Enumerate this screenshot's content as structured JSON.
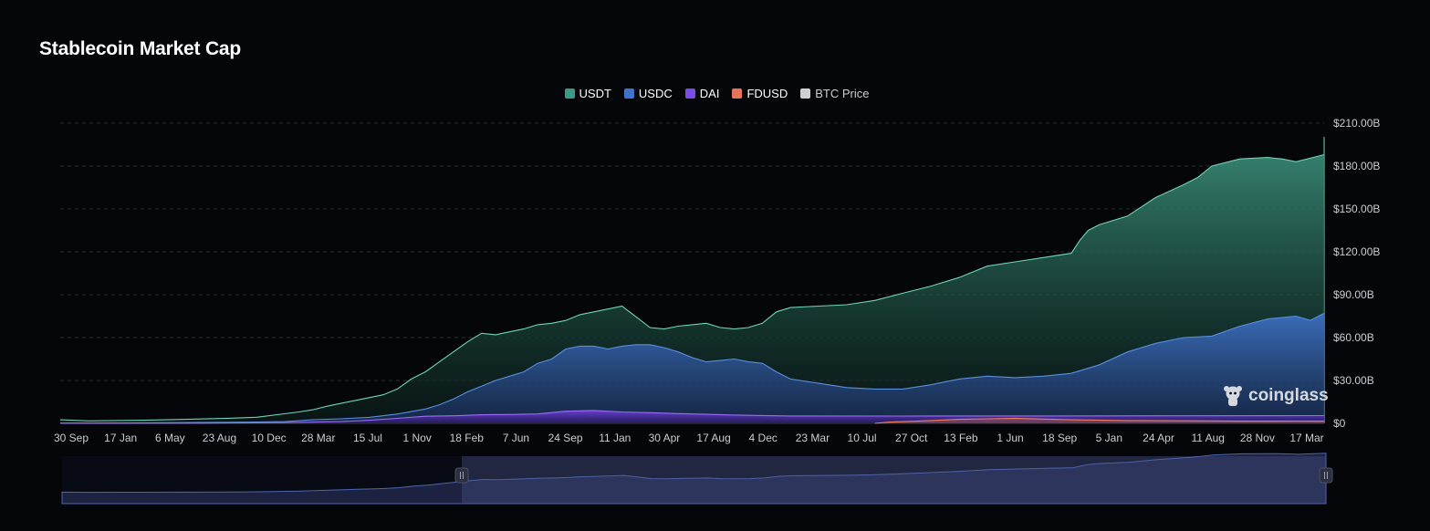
{
  "title": "Stablecoin Market Cap",
  "watermark": "coinglass",
  "legend": [
    {
      "label": "USDT",
      "color": "#3a9a86",
      "active": true
    },
    {
      "label": "USDC",
      "color": "#3f74c9",
      "active": true
    },
    {
      "label": "DAI",
      "color": "#7b4be8",
      "active": true
    },
    {
      "label": "FDUSD",
      "color": "#e8735a",
      "active": true
    },
    {
      "label": "BTC Price",
      "color": "#cfcfd4",
      "active": false
    }
  ],
  "colors": {
    "background": "#05060a",
    "grid": "#2a2d33",
    "axis_text": "#c9ccd3",
    "usdt_line": "#6fd3b6",
    "usdc_line": "#5a8ee0",
    "dai_line": "#9a6cf5",
    "fdusd_line": "#f08060"
  },
  "chart_data": {
    "type": "area",
    "title": "Stablecoin Market Cap",
    "x_tick_labels": [
      "30 Sep",
      "17 Jan",
      "6 May",
      "23 Aug",
      "10 Dec",
      "28 Mar",
      "15 Jul",
      "1 Nov",
      "18 Feb",
      "7 Jun",
      "24 Sep",
      "11 Jan",
      "30 Apr",
      "17 Aug",
      "4 Dec",
      "23 Mar",
      "10 Jul",
      "27 Oct",
      "13 Feb",
      "1 Jun",
      "18 Sep",
      "5 Jan",
      "24 Apr",
      "11 Aug",
      "28 Nov",
      "17 Mar"
    ],
    "y_tick_labels": [
      "$0",
      "$30.00B",
      "$60.00B",
      "$90.00B",
      "$120.00B",
      "$150.00B",
      "$180.00B",
      "$210.00B"
    ],
    "ylim": [
      0,
      210
    ],
    "y_unit": "B USD",
    "grid": true,
    "legend_position": "top-center",
    "series": [
      {
        "name": "USDT",
        "points": [
          [
            0,
            2.5
          ],
          [
            1,
            1.7
          ],
          [
            3,
            2.2
          ],
          [
            4.5,
            2.8
          ],
          [
            6,
            3.6
          ],
          [
            7,
            4.3
          ],
          [
            8.5,
            8
          ],
          [
            9,
            9.5
          ],
          [
            9.5,
            12
          ],
          [
            10,
            14
          ],
          [
            10.5,
            16
          ],
          [
            11,
            18
          ],
          [
            11.5,
            20
          ],
          [
            12,
            24
          ],
          [
            12.5,
            31
          ],
          [
            13,
            36
          ],
          [
            13.5,
            43
          ],
          [
            14,
            50
          ],
          [
            14.5,
            57
          ],
          [
            15,
            63
          ],
          [
            15.5,
            62
          ],
          [
            16,
            64
          ],
          [
            16.5,
            66
          ],
          [
            17,
            69
          ],
          [
            17.5,
            70
          ],
          [
            18,
            72
          ],
          [
            18.5,
            76
          ],
          [
            19,
            78
          ],
          [
            19.5,
            80
          ],
          [
            20,
            82
          ],
          [
            20.2,
            79
          ],
          [
            20.6,
            73
          ],
          [
            21,
            67
          ],
          [
            21.5,
            66
          ],
          [
            22,
            68
          ],
          [
            22.5,
            69
          ],
          [
            23,
            70
          ],
          [
            23.5,
            67
          ],
          [
            24,
            66
          ],
          [
            24.5,
            67
          ],
          [
            25,
            70
          ],
          [
            25.5,
            78
          ],
          [
            26,
            81
          ],
          [
            27,
            82
          ],
          [
            28,
            83
          ],
          [
            29,
            86
          ],
          [
            30,
            91
          ],
          [
            31,
            96
          ],
          [
            32,
            102
          ],
          [
            33,
            110
          ],
          [
            34,
            113
          ],
          [
            35,
            116
          ],
          [
            36,
            119
          ],
          [
            36.3,
            128
          ],
          [
            36.6,
            135
          ],
          [
            37,
            139
          ],
          [
            38,
            145
          ],
          [
            39,
            158
          ],
          [
            40,
            167
          ],
          [
            40.5,
            172
          ],
          [
            41,
            180
          ],
          [
            42,
            185
          ],
          [
            43,
            186
          ],
          [
            43.5,
            185
          ],
          [
            44,
            183
          ],
          [
            45,
            188
          ]
        ]
      },
      {
        "name": "USDC",
        "points": [
          [
            0,
            0.2
          ],
          [
            3,
            0.4
          ],
          [
            5,
            0.6
          ],
          [
            7,
            0.9
          ],
          [
            8,
            1.2
          ],
          [
            9,
            2.5
          ],
          [
            10,
            3.2
          ],
          [
            11,
            4.2
          ],
          [
            12,
            6.5
          ],
          [
            13,
            10
          ],
          [
            13.5,
            13
          ],
          [
            14,
            17
          ],
          [
            14.5,
            22
          ],
          [
            15,
            26
          ],
          [
            15.5,
            30
          ],
          [
            16,
            33
          ],
          [
            16.5,
            36
          ],
          [
            17,
            42
          ],
          [
            17.5,
            45
          ],
          [
            18,
            52
          ],
          [
            18.5,
            54
          ],
          [
            19,
            54
          ],
          [
            19.5,
            52
          ],
          [
            20,
            54
          ],
          [
            20.5,
            55
          ],
          [
            21,
            55
          ],
          [
            21.5,
            53
          ],
          [
            22,
            50
          ],
          [
            22.5,
            46
          ],
          [
            23,
            43
          ],
          [
            23.5,
            44
          ],
          [
            24,
            45
          ],
          [
            24.5,
            43
          ],
          [
            25,
            42
          ],
          [
            25.5,
            36
          ],
          [
            26,
            31
          ],
          [
            27,
            28
          ],
          [
            28,
            25
          ],
          [
            29,
            24
          ],
          [
            30,
            24
          ],
          [
            31,
            27
          ],
          [
            32,
            31
          ],
          [
            33,
            33
          ],
          [
            34,
            32
          ],
          [
            35,
            33
          ],
          [
            36,
            35
          ],
          [
            37,
            41
          ],
          [
            38,
            50
          ],
          [
            39,
            56
          ],
          [
            40,
            60
          ],
          [
            41,
            61
          ],
          [
            42,
            68
          ],
          [
            43,
            73
          ],
          [
            44,
            75
          ],
          [
            44.5,
            72
          ],
          [
            45,
            77
          ]
        ]
      },
      {
        "name": "DAI",
        "points": [
          [
            0,
            0
          ],
          [
            5,
            0.1
          ],
          [
            8,
            0.5
          ],
          [
            10,
            1.2
          ],
          [
            11,
            2.2
          ],
          [
            12,
            3.5
          ],
          [
            13,
            5
          ],
          [
            14,
            5.3
          ],
          [
            15,
            6
          ],
          [
            16,
            6.2
          ],
          [
            17,
            6.6
          ],
          [
            18,
            8.5
          ],
          [
            19,
            9
          ],
          [
            20,
            8
          ],
          [
            21,
            7.5
          ],
          [
            22,
            6.8
          ],
          [
            23,
            6.3
          ],
          [
            24,
            5.8
          ],
          [
            25,
            5.5
          ],
          [
            26,
            5.2
          ],
          [
            30,
            5.1
          ],
          [
            35,
            5.2
          ],
          [
            40,
            5.3
          ],
          [
            45,
            5.4
          ]
        ]
      },
      {
        "name": "FDUSD",
        "points": [
          [
            29,
            0
          ],
          [
            29.5,
            0.8
          ],
          [
            31,
            2
          ],
          [
            32,
            2.8
          ],
          [
            33,
            3.2
          ],
          [
            34,
            3.6
          ],
          [
            35,
            3
          ],
          [
            36,
            2.5
          ],
          [
            38,
            2
          ],
          [
            40,
            1.8
          ],
          [
            42,
            1.5
          ],
          [
            44,
            1.6
          ],
          [
            45,
            1.5
          ]
        ]
      }
    ]
  }
}
